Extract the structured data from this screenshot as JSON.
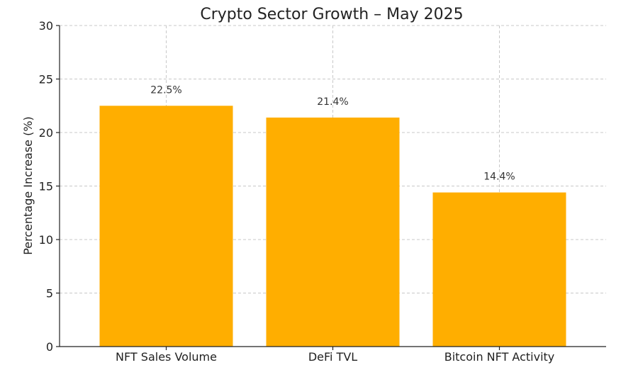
{
  "chart_data": {
    "type": "bar",
    "title": "Crypto Sector Growth – May 2025",
    "xlabel": "",
    "ylabel": "Percentage Increase (%)",
    "categories": [
      "NFT Sales Volume",
      "DeFi TVL",
      "Bitcoin NFT Activity"
    ],
    "values": [
      22.5,
      21.4,
      14.4
    ],
    "data_labels": [
      "22.5%",
      "21.4%",
      "14.4%"
    ],
    "ylim": [
      0,
      30
    ],
    "yticks": [
      0,
      5,
      10,
      15,
      20,
      25,
      30
    ],
    "ytick_labels": [
      "0",
      "5",
      "10",
      "15",
      "20",
      "25",
      "30"
    ],
    "grid": true,
    "bar_color": "#FFAE00"
  }
}
